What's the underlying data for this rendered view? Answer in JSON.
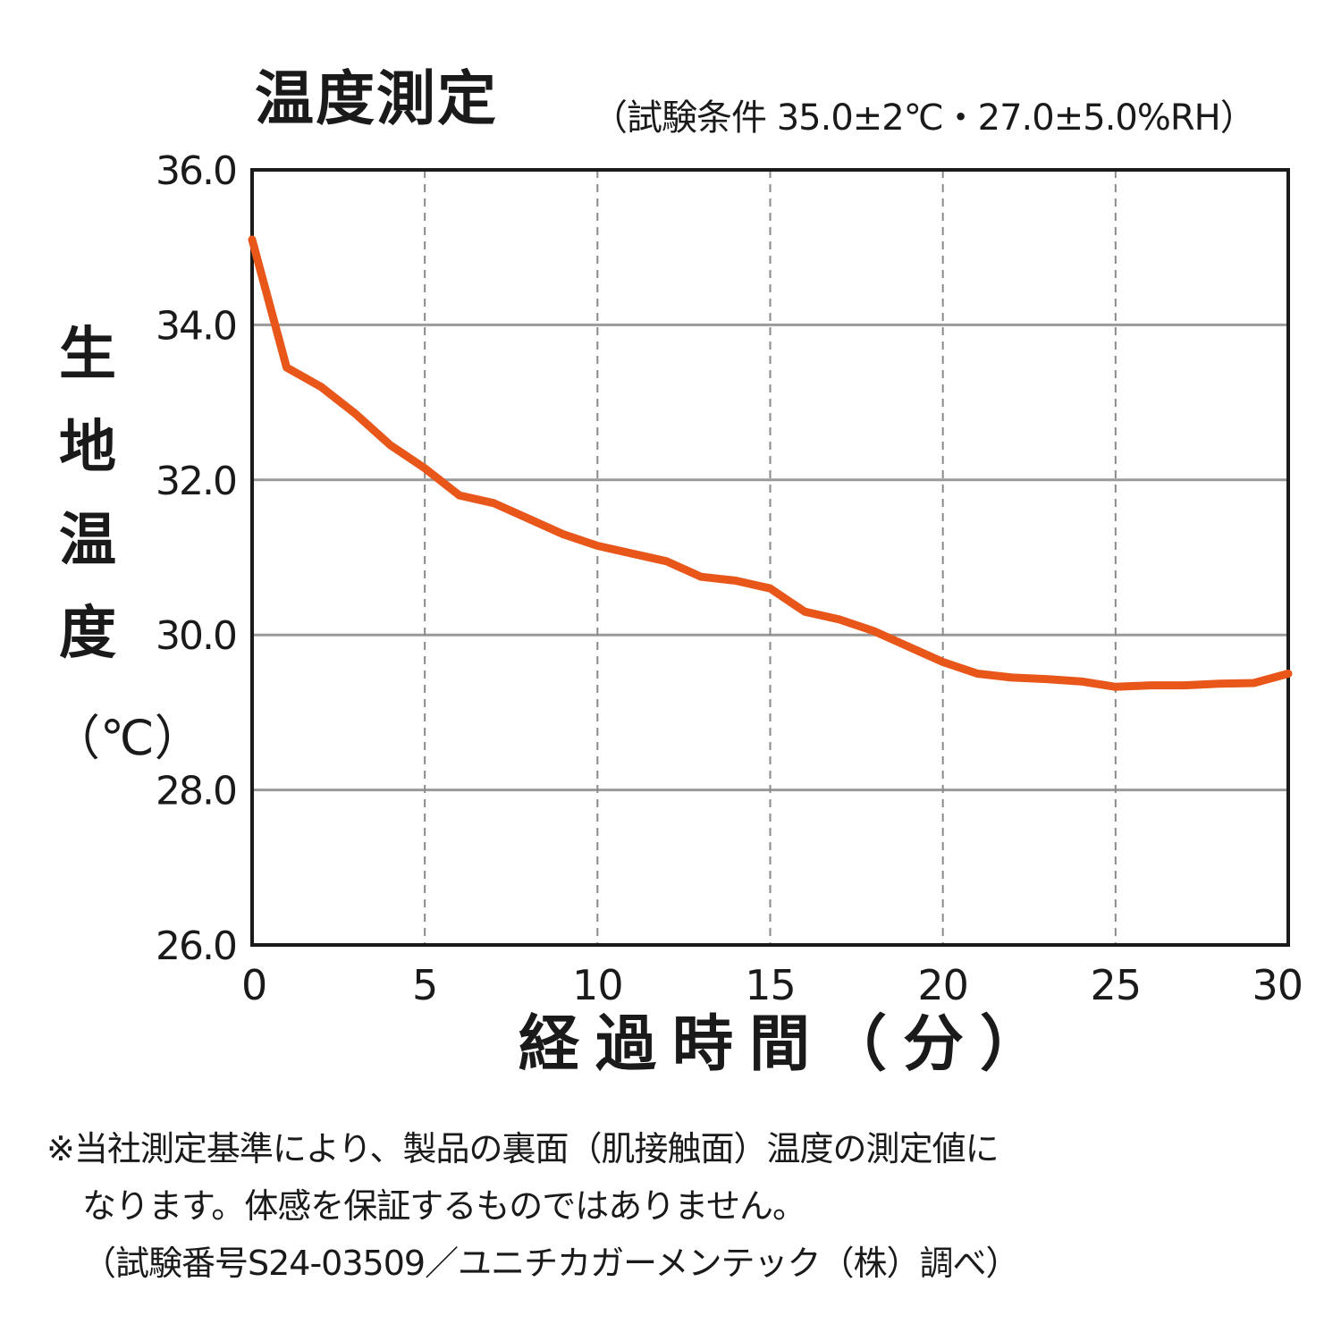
{
  "chart_data": {
    "type": "line",
    "title": "温度測定",
    "subtitle": "（試験条件 35.0±2℃・27.0±5.0%RH）",
    "xlabel": "経過時間（分）",
    "ylabel_chars": [
      "生",
      "地",
      "温",
      "度"
    ],
    "ylabel_unit": "（℃）",
    "xlim": [
      0,
      30
    ],
    "ylim": [
      26,
      36
    ],
    "xticks": [
      0,
      5,
      10,
      15,
      20,
      25,
      30
    ],
    "yticks": [
      "36.0",
      "34.0",
      "32.0",
      "30.0",
      "28.0",
      "26.0"
    ],
    "ytick_values": [
      36,
      34,
      32,
      30,
      28,
      26
    ],
    "grid": true,
    "series": [
      {
        "color": "#e8561a",
        "x": [
          0,
          1,
          2,
          3,
          4,
          5,
          6,
          7,
          8,
          9,
          10,
          11,
          12,
          13,
          14,
          15,
          16,
          17,
          18,
          19,
          20,
          21,
          22,
          23,
          24,
          25,
          26,
          27,
          28,
          29,
          30
        ],
        "y": [
          35.1,
          33.45,
          33.2,
          32.85,
          32.45,
          32.15,
          31.8,
          31.7,
          31.5,
          31.3,
          31.15,
          31.05,
          30.95,
          30.75,
          30.7,
          30.6,
          30.3,
          30.2,
          30.05,
          29.85,
          29.65,
          29.5,
          29.45,
          29.43,
          29.4,
          29.33,
          29.35,
          29.35,
          29.37,
          29.38,
          29.5
        ]
      }
    ]
  },
  "note": {
    "line1": "※当社測定基準により、製品の裏面（肌接触面）温度の測定値に",
    "line2": "なります。体感を保証するものではありません。",
    "line3": "（試験番号S24-03509／ユニチカガーメンテック（株）調べ）"
  }
}
